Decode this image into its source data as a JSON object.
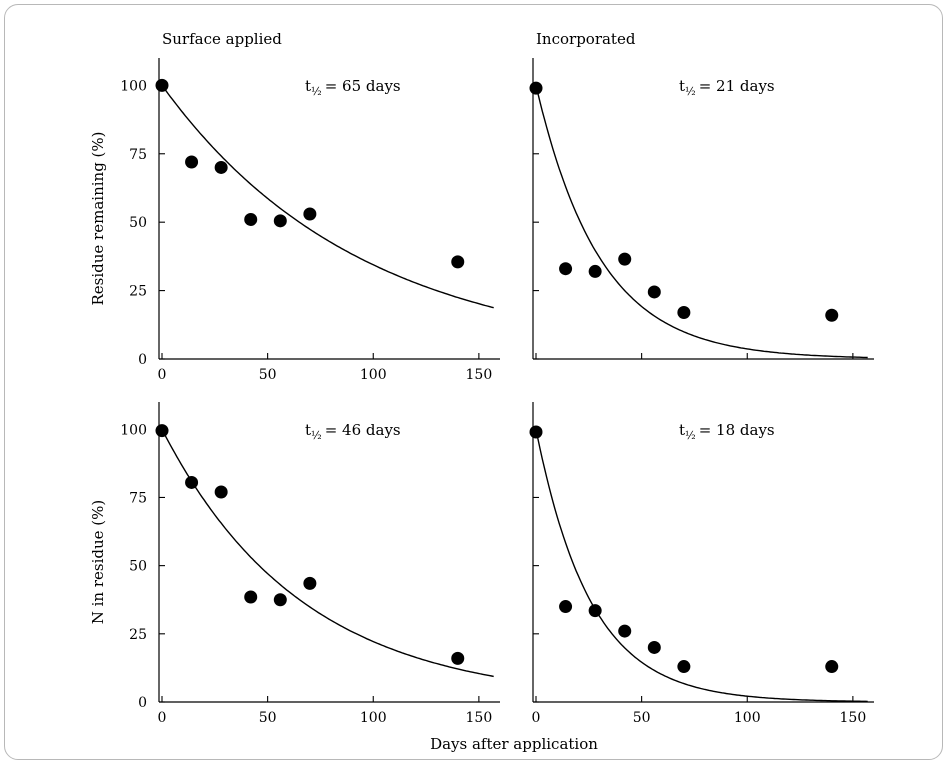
{
  "chart_data": {
    "type": "scatter",
    "shared_xlabel": "Days after application",
    "panels": [
      {
        "id": "surface-residue",
        "title": "Surface applied",
        "ylabel": "Residue remaining (%)",
        "annotation_prefix": "t",
        "annotation_subscript": "½",
        "annotation_value": "= 65 days",
        "half_life": 65,
        "xlim": [
          0,
          160
        ],
        "ylim": [
          0,
          110
        ],
        "x_ticks": [
          0,
          50,
          100,
          150
        ],
        "y_ticks": [
          0,
          25,
          50,
          75,
          100
        ],
        "show_x_tick_labels": true,
        "show_y_tick_labels": true,
        "x": [
          0,
          14,
          28,
          42,
          56,
          70,
          140
        ],
        "y": [
          100,
          72,
          70,
          51,
          50.5,
          53,
          35.5
        ]
      },
      {
        "id": "incorporated-residue",
        "title": "Incorporated",
        "ylabel": "",
        "annotation_prefix": "t",
        "annotation_subscript": "½",
        "annotation_value": "= 21 days",
        "half_life": 21,
        "xlim": [
          0,
          160
        ],
        "ylim": [
          0,
          110
        ],
        "x_ticks": [
          0,
          50,
          100,
          150
        ],
        "y_ticks": [
          0,
          25,
          50,
          75,
          100
        ],
        "show_x_tick_labels": false,
        "show_y_tick_labels": false,
        "x": [
          0,
          14,
          28,
          42,
          56,
          70,
          140
        ],
        "y": [
          99,
          33,
          32,
          36.5,
          24.5,
          17,
          16
        ]
      },
      {
        "id": "surface-nitrogen",
        "title": "",
        "ylabel": "N in residue (%)",
        "annotation_prefix": "t",
        "annotation_subscript": "½",
        "annotation_value": "= 46 days",
        "half_life": 46,
        "xlim": [
          0,
          160
        ],
        "ylim": [
          0,
          110
        ],
        "x_ticks": [
          0,
          50,
          100,
          150
        ],
        "y_ticks": [
          0,
          25,
          50,
          75,
          100
        ],
        "show_x_tick_labels": true,
        "show_y_tick_labels": true,
        "x": [
          0,
          14,
          28,
          42,
          56,
          70,
          140
        ],
        "y": [
          99.5,
          80.5,
          77,
          38.5,
          37.5,
          43.5,
          16
        ]
      },
      {
        "id": "incorporated-nitrogen",
        "title": "",
        "ylabel": "",
        "annotation_prefix": "t",
        "annotation_subscript": "½",
        "annotation_value": "= 18 days",
        "half_life": 18,
        "xlim": [
          0,
          160
        ],
        "ylim": [
          0,
          110
        ],
        "x_ticks": [
          0,
          50,
          100,
          150
        ],
        "y_ticks": [
          0,
          25,
          50,
          75,
          100
        ],
        "show_x_tick_labels": true,
        "show_y_tick_labels": false,
        "x": [
          0,
          14,
          28,
          42,
          56,
          70,
          140
        ],
        "y": [
          99,
          35,
          33.5,
          26,
          20,
          13,
          13
        ]
      }
    ]
  }
}
